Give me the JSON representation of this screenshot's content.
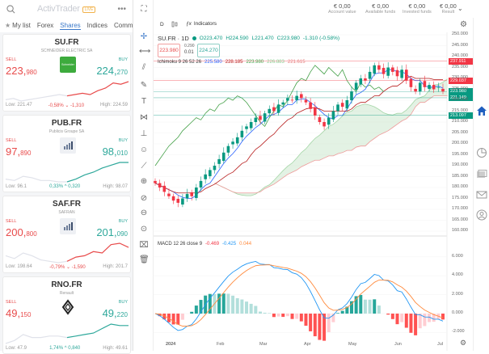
{
  "app": {
    "logo": "ActivTrader",
    "badge": "LIVE"
  },
  "tabs": [
    {
      "label": "My list",
      "active": false
    },
    {
      "label": "Forex",
      "active": false
    },
    {
      "label": "Shares",
      "active": true
    },
    {
      "label": "Indices",
      "active": false
    },
    {
      "label": "Comm",
      "active": false
    }
  ],
  "cards": [
    {
      "symbol": "SU.FR",
      "name": "SCHNEIDER ELECTRIC SA",
      "sell_label": "SELL",
      "buy_label": "BUY",
      "sell_int": "223,",
      "sell_dec": "980",
      "buy_int": "224,",
      "buy_dec": "270",
      "low": "Low: 221.47",
      "change": "-0,58% ⌄ -1,310",
      "high": "High: 224.59",
      "direction": "down",
      "logo": "schneider",
      "spark": [
        5,
        6,
        4,
        5,
        6,
        7,
        8,
        9,
        8,
        9,
        10,
        9,
        12,
        14,
        18,
        17,
        19
      ]
    },
    {
      "symbol": "PUB.FR",
      "name": "Publicis Groupe SA",
      "sell_label": "SELL",
      "buy_label": "BUY",
      "sell_int": "97,",
      "sell_dec": "890",
      "buy_int": "98,",
      "buy_dec": "010",
      "low": "Low: 96.1",
      "change": "0,33% ^ 0,320",
      "high": "High: 98.07",
      "direction": "up",
      "logo": "bars",
      "spark": [
        5,
        4,
        7,
        6,
        4,
        4,
        3,
        3,
        5,
        8,
        10,
        13,
        15,
        17,
        17
      ]
    },
    {
      "symbol": "SAF.FR",
      "name": "SAFRAN",
      "sell_label": "SELL",
      "buy_label": "BUY",
      "sell_int": "200,",
      "sell_dec": "800",
      "buy_int": "201,",
      "buy_dec": "090",
      "low": "Low: 198.64",
      "change": "-0,79% ⌄ -1,590",
      "high": "High: 201.7",
      "direction": "down",
      "logo": "bars",
      "spark": [
        8,
        6,
        10,
        8,
        5,
        4,
        3,
        4,
        7,
        8,
        11,
        10,
        16,
        17,
        14
      ]
    },
    {
      "symbol": "RNO.FR",
      "name": "Renault",
      "sell_label": "SELL",
      "buy_label": "BUY",
      "sell_int": "49,",
      "sell_dec": "150",
      "buy_int": "49,",
      "buy_dec": "220",
      "low": "Low: 47.9",
      "change": "1,74% ^ 0,840",
      "high": "High: 49.61",
      "direction": "up",
      "logo": "renault",
      "spark": [
        3,
        5,
        9,
        7,
        7,
        8,
        8,
        7,
        8,
        9,
        10,
        13,
        16,
        15,
        15
      ]
    }
  ],
  "account": [
    {
      "value": "€ 0,00",
      "label": "Account value"
    },
    {
      "value": "€ 0,00",
      "label": "Available funds"
    },
    {
      "value": "€ 0,00",
      "label": "Invested funds"
    },
    {
      "value": "€ 0,00",
      "label": "Result"
    }
  ],
  "chart": {
    "interval": "D",
    "indicators_label": "Indicators",
    "title": "SU.FR · 1D",
    "ohlc": {
      "o": "O223.470",
      "h": "H224.590",
      "l": "L221.470",
      "c": "C223.980",
      "chg": "-1.310 (-0.58%)"
    },
    "sell_box": "223.980",
    "spread_top": "0.290",
    "spread_bottom": "0.01",
    "buy_box": "224.270",
    "ichimoku": {
      "label": "Ichimoku 9 26 52 26",
      "v1": "225.580",
      "v2": "228.185",
      "v3": "223.980",
      "v4": "226.883",
      "v5": "221.615"
    },
    "macd": {
      "label": "MACD 12 26 close 9",
      "v1": "-0.469",
      "v2": "-0.425",
      "v3": "0.044"
    },
    "price_labels": [
      {
        "value": "237.911",
        "color": "#f23645"
      },
      {
        "value": "229.037",
        "color": "#f23645"
      },
      {
        "value": "223.980",
        "color": "#089981"
      },
      {
        "value": "221.149",
        "color": "#089981"
      },
      {
        "value": "213.097",
        "color": "#089981"
      }
    ],
    "y_ticks": [
      "250.000",
      "245.000",
      "240.000",
      "235.000",
      "230.000",
      "225.000",
      "220.000",
      "215.000",
      "210.000",
      "205.000",
      "200.000",
      "195.000",
      "190.000",
      "185.000",
      "180.000",
      "175.000",
      "170.000",
      "165.000",
      "160.000"
    ],
    "macd_ticks": [
      "6.000",
      "4.000",
      "2.000",
      "0.000",
      "-2.000"
    ],
    "x_labels": [
      "2024",
      "Feb",
      "Mar",
      "Apr",
      "May",
      "Jun",
      "Jul"
    ],
    "ylim": [
      160,
      250
    ],
    "closes": [
      182,
      180,
      178,
      176,
      174,
      173,
      175,
      177,
      176,
      180,
      183,
      186,
      188,
      190,
      193,
      196,
      199,
      201,
      203,
      206,
      208,
      210,
      212,
      211,
      214,
      216,
      215,
      218,
      219,
      221,
      220,
      222,
      221,
      219,
      216,
      213,
      210,
      208,
      212,
      215,
      218,
      217,
      220,
      224,
      228,
      230,
      229,
      233,
      236,
      234,
      232,
      235,
      233,
      231,
      234,
      229,
      226,
      224,
      228,
      226,
      227,
      225,
      226,
      224
    ],
    "up_color": "#089981",
    "down_color": "#f23645"
  },
  "colors": {
    "accent": "#3a78c9",
    "sell": "#e84b4b",
    "buy": "#2ea89b"
  }
}
